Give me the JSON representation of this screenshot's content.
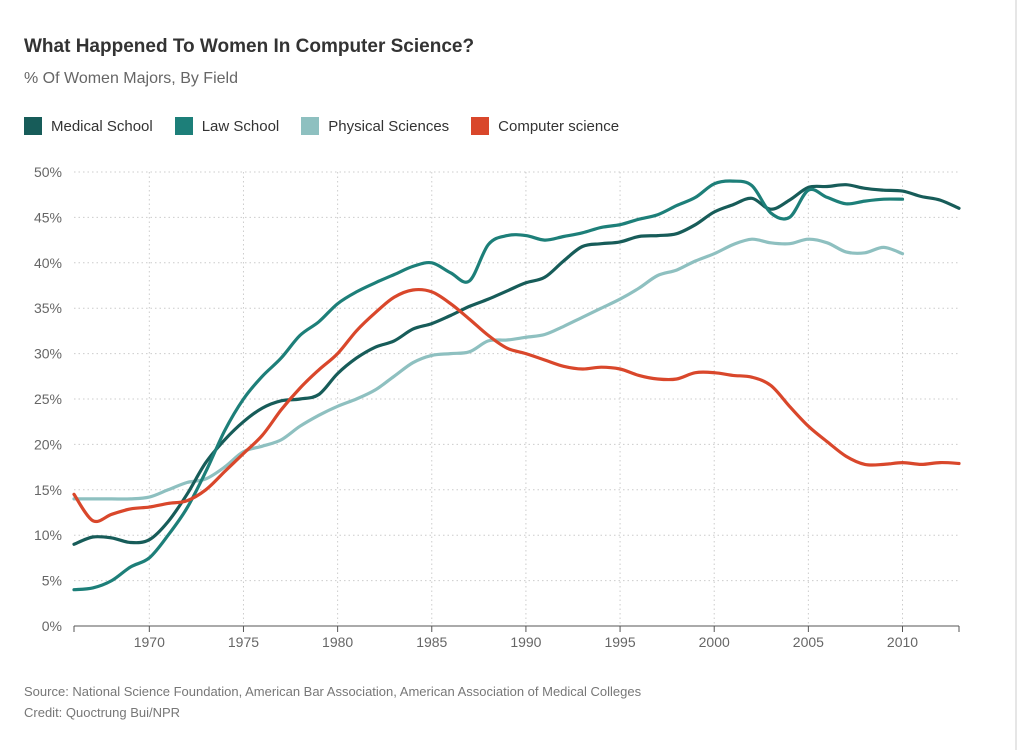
{
  "title": "What Happened To Women In Computer Science?",
  "subtitle": "% Of Women Majors, By Field",
  "source": "Source: National Science Foundation, American Bar Association, American Association of Medical Colleges",
  "credit": "Credit: Quoctrung Bui/NPR",
  "chart_data": {
    "type": "line",
    "title": "What Happened To Women In Computer Science?",
    "subtitle": "% Of Women Majors, By Field",
    "xlabel": "",
    "ylabel": "",
    "xlim": [
      1966,
      2013
    ],
    "ylim": [
      0,
      50
    ],
    "x_ticks": [
      1970,
      1975,
      1980,
      1985,
      1990,
      1995,
      2000,
      2005,
      2010
    ],
    "y_ticks": [
      0,
      5,
      10,
      15,
      20,
      25,
      30,
      35,
      40,
      45,
      50
    ],
    "y_tick_labels": [
      "0%",
      "5%",
      "10%",
      "15%",
      "20%",
      "25%",
      "30%",
      "35%",
      "40%",
      "45%",
      "50%"
    ],
    "grid": "dotted",
    "legend_position": "top-left",
    "series": [
      {
        "name": "Medical School",
        "color": "#175c59",
        "x": [
          1966,
          1967,
          1968,
          1969,
          1970,
          1971,
          1972,
          1973,
          1974,
          1975,
          1976,
          1977,
          1978,
          1979,
          1980,
          1981,
          1982,
          1983,
          1984,
          1985,
          1986,
          1987,
          1988,
          1989,
          1990,
          1991,
          1992,
          1993,
          1994,
          1995,
          1996,
          1997,
          1998,
          1999,
          2000,
          2001,
          2002,
          2003,
          2004,
          2005,
          2006,
          2007,
          2008,
          2009,
          2010,
          2011,
          2012,
          2013
        ],
        "y": [
          9.0,
          9.8,
          9.7,
          9.2,
          9.5,
          11.5,
          14.5,
          18.0,
          20.5,
          22.5,
          24.0,
          24.8,
          25.0,
          25.5,
          27.8,
          29.5,
          30.7,
          31.4,
          32.7,
          33.3,
          34.2,
          35.2,
          36.0,
          36.9,
          37.8,
          38.4,
          40.2,
          41.8,
          42.1,
          42.3,
          42.9,
          43.0,
          43.2,
          44.2,
          45.6,
          46.4,
          47.1,
          45.9,
          46.9,
          48.3,
          48.4,
          48.6,
          48.2,
          48.0,
          47.9,
          47.3,
          46.9,
          46.0
        ]
      },
      {
        "name": "Law School",
        "color": "#1d7f79",
        "x": [
          1966,
          1967,
          1968,
          1969,
          1970,
          1971,
          1972,
          1973,
          1974,
          1975,
          1976,
          1977,
          1978,
          1979,
          1980,
          1981,
          1982,
          1983,
          1984,
          1985,
          1986,
          1987,
          1988,
          1989,
          1990,
          1991,
          1992,
          1993,
          1994,
          1995,
          1996,
          1997,
          1998,
          1999,
          2000,
          2001,
          2002,
          2003,
          2004,
          2005,
          2006,
          2007,
          2008,
          2009,
          2010
        ],
        "y": [
          4.0,
          4.2,
          5.0,
          6.5,
          7.5,
          10.0,
          13.0,
          17.0,
          21.5,
          25.0,
          27.5,
          29.5,
          32.0,
          33.5,
          35.5,
          36.8,
          37.8,
          38.7,
          39.6,
          40.0,
          38.9,
          38.0,
          42.0,
          43.0,
          43.0,
          42.5,
          42.9,
          43.3,
          43.9,
          44.2,
          44.8,
          45.3,
          46.3,
          47.2,
          48.7,
          49.0,
          48.5,
          45.5,
          45.0,
          48.0,
          47.2,
          46.5,
          46.8,
          47.0,
          47.0
        ]
      },
      {
        "name": "Physical Sciences",
        "color": "#8ec0c0",
        "x": [
          1966,
          1967,
          1968,
          1969,
          1970,
          1971,
          1972,
          1973,
          1974,
          1975,
          1976,
          1977,
          1978,
          1979,
          1980,
          1981,
          1982,
          1983,
          1984,
          1985,
          1986,
          1987,
          1988,
          1989,
          1990,
          1991,
          1992,
          1993,
          1994,
          1995,
          1996,
          1997,
          1998,
          1999,
          2000,
          2001,
          2002,
          2003,
          2004,
          2005,
          2006,
          2007,
          2008,
          2009,
          2010
        ],
        "y": [
          14.0,
          14.0,
          14.0,
          14.0,
          14.2,
          15.0,
          15.8,
          16.2,
          17.5,
          19.2,
          19.8,
          20.5,
          22.0,
          23.2,
          24.2,
          25.0,
          26.0,
          27.5,
          29.0,
          29.8,
          30.0,
          30.2,
          31.4,
          31.5,
          31.8,
          32.1,
          33.0,
          34.0,
          35.0,
          36.0,
          37.2,
          38.6,
          39.2,
          40.2,
          41.0,
          42.0,
          42.6,
          42.2,
          42.1,
          42.6,
          42.2,
          41.2,
          41.1,
          41.7,
          41.0
        ]
      },
      {
        "name": "Computer science",
        "color": "#d9472b",
        "x": [
          1966,
          1967,
          1968,
          1969,
          1970,
          1971,
          1972,
          1973,
          1974,
          1975,
          1976,
          1977,
          1978,
          1979,
          1980,
          1981,
          1982,
          1983,
          1984,
          1985,
          1986,
          1987,
          1988,
          1989,
          1990,
          1991,
          1992,
          1993,
          1994,
          1995,
          1996,
          1997,
          1998,
          1999,
          2000,
          2001,
          2002,
          2003,
          2004,
          2005,
          2006,
          2007,
          2008,
          2009,
          2010,
          2011,
          2012,
          2013
        ],
        "y": [
          14.5,
          11.6,
          12.3,
          12.9,
          13.1,
          13.5,
          13.8,
          15.0,
          17.0,
          19.0,
          21.0,
          23.8,
          26.2,
          28.2,
          30.0,
          32.5,
          34.5,
          36.2,
          37.0,
          36.8,
          35.5,
          33.8,
          32.0,
          30.6,
          30.0,
          29.3,
          28.6,
          28.3,
          28.5,
          28.3,
          27.6,
          27.2,
          27.2,
          27.9,
          27.9,
          27.6,
          27.4,
          26.5,
          24.2,
          22.0,
          20.3,
          18.7,
          17.8,
          17.8,
          18.0,
          17.8,
          18.0,
          17.9
        ]
      }
    ]
  }
}
